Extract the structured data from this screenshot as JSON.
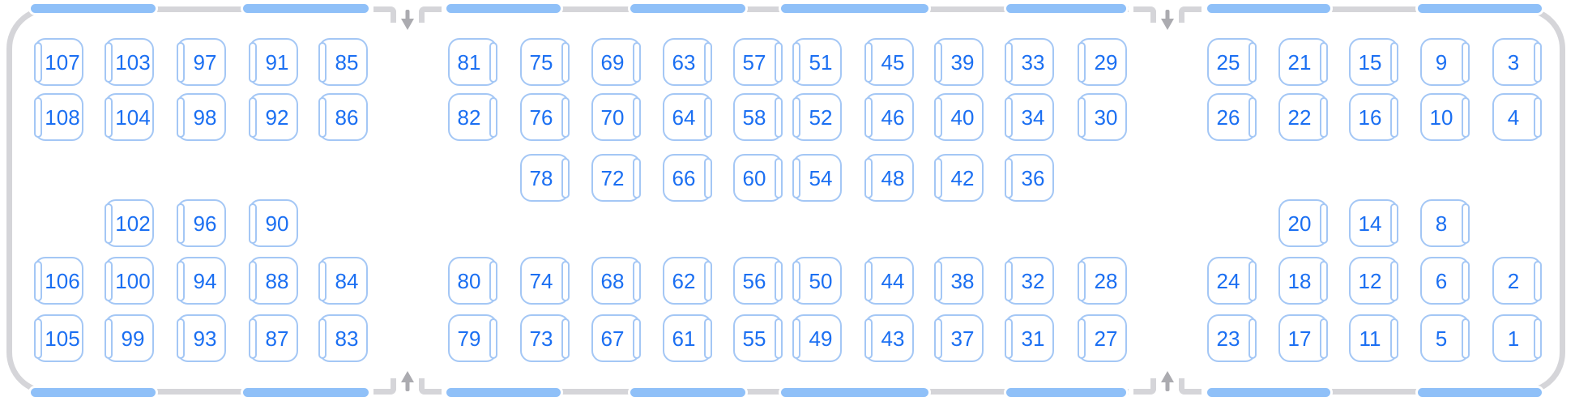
{
  "palette": {
    "wall_gray": "#D5D5D9",
    "window_blue": "#8FC0F8",
    "seat_border_blue": "#A4C7F5",
    "seat_number_blue": "#1B6FF2",
    "arrow_gray": "#ABABB0"
  },
  "carriage": {
    "name": "train-car-seat-map",
    "window_segments_per_edge": 8,
    "doors": [
      {
        "id": "door-1",
        "top_arrow": "down",
        "bottom_arrow": "up"
      },
      {
        "id": "door-2",
        "top_arrow": "down",
        "bottom_arrow": "up"
      }
    ],
    "sections": [
      {
        "id": "left-section",
        "seats": [
          {
            "n": "107",
            "r": 0,
            "c": 0,
            "p": "L"
          },
          {
            "n": "103",
            "r": 0,
            "c": 1,
            "p": "L"
          },
          {
            "n": "97",
            "r": 0,
            "c": 2,
            "p": "L"
          },
          {
            "n": "91",
            "r": 0,
            "c": 3,
            "p": "L"
          },
          {
            "n": "85",
            "r": 0,
            "c": 4,
            "p": "L"
          },
          {
            "n": "108",
            "r": 1,
            "c": 0,
            "p": "L"
          },
          {
            "n": "104",
            "r": 1,
            "c": 1,
            "p": "L"
          },
          {
            "n": "98",
            "r": 1,
            "c": 2,
            "p": "L"
          },
          {
            "n": "92",
            "r": 1,
            "c": 3,
            "p": "L"
          },
          {
            "n": "86",
            "r": 1,
            "c": 4,
            "p": "L"
          },
          {
            "n": "102",
            "r": 2,
            "c": 1,
            "p": "L"
          },
          {
            "n": "96",
            "r": 2,
            "c": 2,
            "p": "L"
          },
          {
            "n": "90",
            "r": 2,
            "c": 3,
            "p": "L"
          },
          {
            "n": "106",
            "r": 3,
            "c": 0,
            "p": "L"
          },
          {
            "n": "100",
            "r": 3,
            "c": 1,
            "p": "L"
          },
          {
            "n": "94",
            "r": 3,
            "c": 2,
            "p": "L"
          },
          {
            "n": "88",
            "r": 3,
            "c": 3,
            "p": "L"
          },
          {
            "n": "84",
            "r": 3,
            "c": 4,
            "p": "L"
          },
          {
            "n": "105",
            "r": 4,
            "c": 0,
            "p": "L"
          },
          {
            "n": "99",
            "r": 4,
            "c": 1,
            "p": "L"
          },
          {
            "n": "93",
            "r": 4,
            "c": 2,
            "p": "L"
          },
          {
            "n": "87",
            "r": 4,
            "c": 3,
            "p": "L"
          },
          {
            "n": "83",
            "r": 4,
            "c": 4,
            "p": "L"
          }
        ]
      },
      {
        "id": "middle-section",
        "seats": [
          {
            "n": "81",
            "r": 0,
            "c": 0,
            "p": "R"
          },
          {
            "n": "75",
            "r": 0,
            "c": 1,
            "p": "R"
          },
          {
            "n": "69",
            "r": 0,
            "c": 2,
            "p": "R"
          },
          {
            "n": "63",
            "r": 0,
            "c": 3,
            "p": "R"
          },
          {
            "n": "57",
            "r": 0,
            "c": 4,
            "p": "R"
          },
          {
            "n": "51",
            "r": 0,
            "c": 5,
            "p": "L"
          },
          {
            "n": "45",
            "r": 0,
            "c": 6,
            "p": "L"
          },
          {
            "n": "39",
            "r": 0,
            "c": 7,
            "p": "L"
          },
          {
            "n": "33",
            "r": 0,
            "c": 8,
            "p": "L"
          },
          {
            "n": "29",
            "r": 0,
            "c": 9,
            "p": "L"
          },
          {
            "n": "82",
            "r": 1,
            "c": 0,
            "p": "R"
          },
          {
            "n": "76",
            "r": 1,
            "c": 1,
            "p": "R"
          },
          {
            "n": "70",
            "r": 1,
            "c": 2,
            "p": "R"
          },
          {
            "n": "64",
            "r": 1,
            "c": 3,
            "p": "R"
          },
          {
            "n": "58",
            "r": 1,
            "c": 4,
            "p": "R"
          },
          {
            "n": "52",
            "r": 1,
            "c": 5,
            "p": "L"
          },
          {
            "n": "46",
            "r": 1,
            "c": 6,
            "p": "L"
          },
          {
            "n": "40",
            "r": 1,
            "c": 7,
            "p": "L"
          },
          {
            "n": "34",
            "r": 1,
            "c": 8,
            "p": "L"
          },
          {
            "n": "30",
            "r": 1,
            "c": 9,
            "p": "L"
          },
          {
            "n": "78",
            "r": 2,
            "c": 1,
            "p": "R"
          },
          {
            "n": "72",
            "r": 2,
            "c": 2,
            "p": "R"
          },
          {
            "n": "66",
            "r": 2,
            "c": 3,
            "p": "R"
          },
          {
            "n": "60",
            "r": 2,
            "c": 4,
            "p": "R"
          },
          {
            "n": "54",
            "r": 2,
            "c": 5,
            "p": "L"
          },
          {
            "n": "48",
            "r": 2,
            "c": 6,
            "p": "L"
          },
          {
            "n": "42",
            "r": 2,
            "c": 7,
            "p": "L"
          },
          {
            "n": "36",
            "r": 2,
            "c": 8,
            "p": "L"
          },
          {
            "n": "80",
            "r": 3,
            "c": 0,
            "p": "R"
          },
          {
            "n": "74",
            "r": 3,
            "c": 1,
            "p": "R"
          },
          {
            "n": "68",
            "r": 3,
            "c": 2,
            "p": "R"
          },
          {
            "n": "62",
            "r": 3,
            "c": 3,
            "p": "R"
          },
          {
            "n": "56",
            "r": 3,
            "c": 4,
            "p": "R"
          },
          {
            "n": "50",
            "r": 3,
            "c": 5,
            "p": "L"
          },
          {
            "n": "44",
            "r": 3,
            "c": 6,
            "p": "L"
          },
          {
            "n": "38",
            "r": 3,
            "c": 7,
            "p": "L"
          },
          {
            "n": "32",
            "r": 3,
            "c": 8,
            "p": "L"
          },
          {
            "n": "28",
            "r": 3,
            "c": 9,
            "p": "L"
          },
          {
            "n": "79",
            "r": 4,
            "c": 0,
            "p": "R"
          },
          {
            "n": "73",
            "r": 4,
            "c": 1,
            "p": "R"
          },
          {
            "n": "67",
            "r": 4,
            "c": 2,
            "p": "R"
          },
          {
            "n": "61",
            "r": 4,
            "c": 3,
            "p": "R"
          },
          {
            "n": "55",
            "r": 4,
            "c": 4,
            "p": "R"
          },
          {
            "n": "49",
            "r": 4,
            "c": 5,
            "p": "L"
          },
          {
            "n": "43",
            "r": 4,
            "c": 6,
            "p": "L"
          },
          {
            "n": "37",
            "r": 4,
            "c": 7,
            "p": "L"
          },
          {
            "n": "31",
            "r": 4,
            "c": 8,
            "p": "L"
          },
          {
            "n": "27",
            "r": 4,
            "c": 9,
            "p": "L"
          }
        ]
      },
      {
        "id": "right-section",
        "seats": [
          {
            "n": "25",
            "r": 0,
            "c": 0,
            "p": "R"
          },
          {
            "n": "21",
            "r": 0,
            "c": 1,
            "p": "R"
          },
          {
            "n": "15",
            "r": 0,
            "c": 2,
            "p": "R"
          },
          {
            "n": "9",
            "r": 0,
            "c": 3,
            "p": "R"
          },
          {
            "n": "3",
            "r": 0,
            "c": 4,
            "p": "R"
          },
          {
            "n": "26",
            "r": 1,
            "c": 0,
            "p": "R"
          },
          {
            "n": "22",
            "r": 1,
            "c": 1,
            "p": "R"
          },
          {
            "n": "16",
            "r": 1,
            "c": 2,
            "p": "R"
          },
          {
            "n": "10",
            "r": 1,
            "c": 3,
            "p": "R"
          },
          {
            "n": "4",
            "r": 1,
            "c": 4,
            "p": "R"
          },
          {
            "n": "20",
            "r": 2,
            "c": 1,
            "p": "R"
          },
          {
            "n": "14",
            "r": 2,
            "c": 2,
            "p": "R"
          },
          {
            "n": "8",
            "r": 2,
            "c": 3,
            "p": "R"
          },
          {
            "n": "24",
            "r": 3,
            "c": 0,
            "p": "R"
          },
          {
            "n": "18",
            "r": 3,
            "c": 1,
            "p": "R"
          },
          {
            "n": "12",
            "r": 3,
            "c": 2,
            "p": "R"
          },
          {
            "n": "6",
            "r": 3,
            "c": 3,
            "p": "R"
          },
          {
            "n": "2",
            "r": 3,
            "c": 4,
            "p": "R"
          },
          {
            "n": "23",
            "r": 4,
            "c": 0,
            "p": "R"
          },
          {
            "n": "17",
            "r": 4,
            "c": 1,
            "p": "R"
          },
          {
            "n": "11",
            "r": 4,
            "c": 2,
            "p": "R"
          },
          {
            "n": "5",
            "r": 4,
            "c": 3,
            "p": "R"
          },
          {
            "n": "1",
            "r": 4,
            "c": 4,
            "p": "R"
          }
        ]
      }
    ]
  }
}
